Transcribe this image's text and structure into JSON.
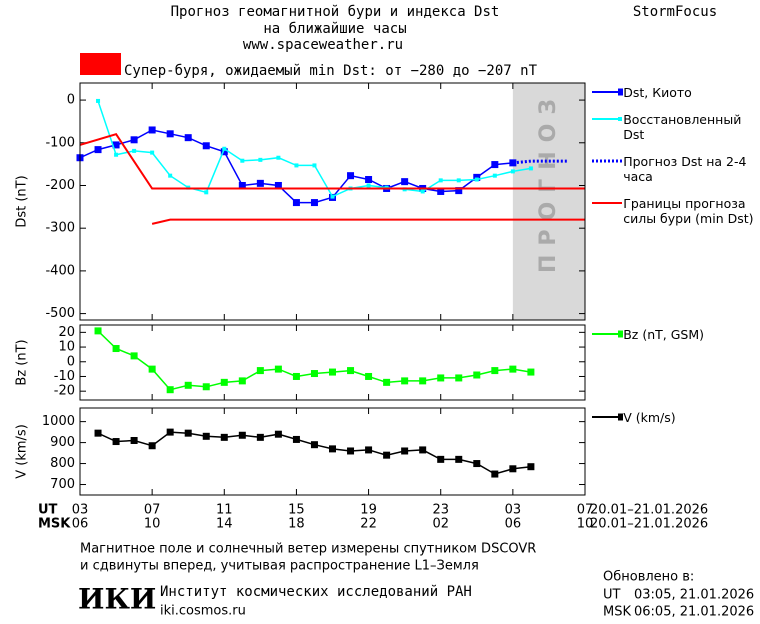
{
  "header": {
    "title": "Прогноз геомагнитной бури и индекса Dst",
    "subtitle": "на ближайшие часы",
    "url": "www.spaceweather.ru",
    "brand": "StormFocus"
  },
  "chart_data": [
    {
      "type": "line",
      "y_label": "Dst (nT)",
      "xlim": [
        0,
        28
      ],
      "ylim": [
        -515,
        40
      ],
      "yticks": [
        0,
        -100,
        -200,
        -300,
        -400,
        -500
      ],
      "storm": {
        "label": "Супер-буря, ожидаемый min Dst: от −280 до −207 nT",
        "color": "#ff0000"
      },
      "forecast_region": {
        "x": [
          24,
          28
        ],
        "label": "ПРОГНОЗ",
        "color": "#d9d9d9"
      },
      "series": [
        {
          "name": "Dst, Киото",
          "color": "#0000ff",
          "marker": "square",
          "x": [
            0,
            1,
            2,
            3,
            4,
            5,
            6,
            7,
            8,
            9,
            10,
            11,
            12,
            13,
            14,
            15,
            16,
            17,
            18,
            19,
            20,
            21,
            22,
            23,
            24
          ],
          "values": [
            -135,
            -116,
            -105,
            -93,
            -70,
            -79,
            -88,
            -107,
            -121,
            -200,
            -195,
            -200,
            -240,
            -240,
            -228,
            -177,
            -186,
            -207,
            -191,
            -207,
            -214,
            -212,
            -181,
            -151,
            -147
          ]
        },
        {
          "name": "Восстановленный Dst",
          "color": "#00ffff",
          "marker": "small-square",
          "x": [
            1,
            2,
            3,
            4,
            5,
            6,
            7,
            8,
            9,
            10,
            11,
            12,
            13,
            14,
            15,
            16,
            17,
            18,
            19,
            20,
            21,
            22,
            23,
            24,
            25
          ],
          "values": [
            -2,
            -128,
            -119,
            -123,
            -177,
            -205,
            -216,
            -114,
            -142,
            -140,
            -135,
            -153,
            -153,
            -226,
            -207,
            -200,
            -205,
            -209,
            -214,
            -188,
            -188,
            -186,
            -177,
            -167,
            -160
          ]
        },
        {
          "name": "Прогноз Dst на 2-4 часа",
          "color": "#0000ff",
          "marker": "none",
          "dash": "2,2",
          "x": [
            24,
            25,
            26,
            27
          ],
          "values": [
            -147,
            -143,
            -143,
            -143
          ]
        },
        {
          "name": "Границы прогноза силы бури (min Dst)",
          "color": "#ff0000",
          "marker": "none",
          "x": [
            0,
            2,
            4,
            28,
            null,
            4,
            5,
            28
          ],
          "values": [
            -105,
            -80,
            -207,
            -207,
            null,
            -290,
            -280,
            -280
          ]
        }
      ]
    },
    {
      "type": "line",
      "y_label": "Bz (nT)",
      "xlim": [
        0,
        28
      ],
      "ylim": [
        -26,
        25
      ],
      "yticks": [
        20,
        10,
        0,
        -10,
        -20
      ],
      "series": [
        {
          "name": "Bz (nT, GSM)",
          "color": "#00ff00",
          "marker": "square",
          "x": [
            1,
            2,
            3,
            4,
            5,
            6,
            7,
            8,
            9,
            10,
            11,
            12,
            13,
            14,
            15,
            16,
            17,
            18,
            19,
            20,
            21,
            22,
            23,
            24,
            25
          ],
          "values": [
            21,
            9,
            4,
            -5,
            -19,
            -16,
            -17,
            -14,
            -13,
            -6,
            -5,
            -10,
            -8,
            -7,
            -6,
            -10,
            -14,
            -13,
            -13,
            -11,
            -11,
            -9,
            -6,
            -5,
            -7
          ]
        }
      ]
    },
    {
      "type": "line",
      "y_label": "V (km/s)",
      "xlim": [
        0,
        28
      ],
      "ylim": [
        650,
        1065
      ],
      "yticks": [
        1000,
        900,
        800,
        700
      ],
      "xticks": [
        {
          "value": 0,
          "label": "03"
        },
        {
          "value": 4,
          "label": "07"
        },
        {
          "value": 8,
          "label": "11"
        },
        {
          "value": 12,
          "label": "15"
        },
        {
          "value": 16,
          "label": "19"
        },
        {
          "value": 20,
          "label": "23"
        },
        {
          "value": 24,
          "label": "03"
        },
        {
          "value": 28,
          "label": "07"
        }
      ],
      "xticks_msk": [
        {
          "value": 0,
          "label": "06"
        },
        {
          "value": 4,
          "label": "10"
        },
        {
          "value": 8,
          "label": "14"
        },
        {
          "value": 12,
          "label": "18"
        },
        {
          "value": 16,
          "label": "22"
        },
        {
          "value": 20,
          "label": "02"
        },
        {
          "value": 24,
          "label": "06"
        },
        {
          "value": 28,
          "label": "10"
        }
      ],
      "x_rows": [
        "UT",
        "MSK"
      ],
      "date_ranges": [
        "20.01–21.01.2026",
        "20.01–21.01.2026"
      ],
      "series": [
        {
          "name": "V (km/s)",
          "color": "#000000",
          "marker": "square",
          "x": [
            1,
            2,
            3,
            4,
            5,
            6,
            7,
            8,
            9,
            10,
            11,
            12,
            13,
            14,
            15,
            16,
            17,
            18,
            19,
            20,
            21,
            22,
            23,
            24,
            25
          ],
          "values": [
            945,
            905,
            910,
            885,
            950,
            945,
            930,
            925,
            935,
            925,
            940,
            915,
            890,
            870,
            860,
            865,
            840,
            860,
            865,
            820,
            820,
            800,
            750,
            775,
            785
          ]
        }
      ]
    }
  ],
  "footer": {
    "note": [
      "Магнитное поле и солнечный ветер измерены спутником DSCOVR",
      "и сдвинуты вперед, учитывая распространение L1–Земля"
    ],
    "logo": "ИКИ",
    "institute": "Институт космических исследований РАН",
    "site": "iki.cosmos.ru",
    "updated_title": "Обновлено в:",
    "updated": [
      [
        "UT",
        "03:05, 21.01.2026"
      ],
      [
        "MSK",
        "06:05, 21.01.2026"
      ]
    ]
  }
}
